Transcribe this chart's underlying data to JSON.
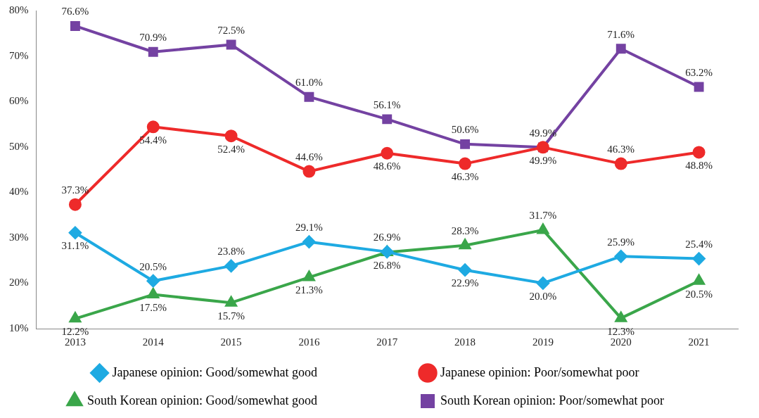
{
  "chart_data": {
    "type": "line",
    "categories": [
      "2013",
      "2014",
      "2015",
      "2016",
      "2017",
      "2018",
      "2019",
      "2020",
      "2021"
    ],
    "series": [
      {
        "name": "Japanese opinion: Good/somewhat good",
        "color": "#1eaae2",
        "marker": "diamond",
        "values": [
          31.1,
          20.5,
          23.8,
          29.1,
          26.9,
          22.9,
          20.0,
          25.9,
          25.4
        ],
        "value_labels": [
          "31.1%",
          "20.5%",
          "23.8%",
          "29.1%",
          "26.9%",
          "22.9%",
          "20.0%",
          "25.9%",
          "25.4%"
        ]
      },
      {
        "name": "Japanese opinion: Poor/somewhat poor",
        "color": "#ee2a2a",
        "marker": "circle",
        "values": [
          37.3,
          54.4,
          52.4,
          44.6,
          48.6,
          46.3,
          49.9,
          46.3,
          48.8
        ],
        "value_labels": [
          "37.3%",
          "54.4%",
          "52.4%",
          "44.6%",
          "48.6%",
          "46.3%",
          "49.9%",
          "46.3%",
          "48.8%"
        ]
      },
      {
        "name": "South Korean opinion: Good/somewhat good",
        "color": "#3aa64a",
        "marker": "triangle",
        "values": [
          12.2,
          17.5,
          15.7,
          21.3,
          26.8,
          28.3,
          31.7,
          12.3,
          20.5
        ],
        "value_labels": [
          "12.2%",
          "17.5%",
          "15.7%",
          "21.3%",
          "26.8%",
          "28.3%",
          "31.7%",
          "12.3%",
          "20.5%"
        ]
      },
      {
        "name": "South Korean opinion: Poor/somewhat poor",
        "color": "#7442a2",
        "marker": "square",
        "values": [
          76.6,
          70.9,
          72.5,
          61.0,
          56.1,
          50.6,
          49.9,
          71.6,
          63.2
        ],
        "value_labels": [
          "76.6%",
          "70.9%",
          "72.5%",
          "61.0%",
          "56.1%",
          "50.6%",
          "49.9%",
          "71.6%",
          "63.2%"
        ]
      }
    ],
    "ylim": [
      10,
      80
    ],
    "yticks": [
      {
        "value": 10,
        "label": "10%"
      },
      {
        "value": 20,
        "label": "20%"
      },
      {
        "value": 30,
        "label": "30%"
      },
      {
        "value": 40,
        "label": "40%"
      },
      {
        "value": 50,
        "label": "50%"
      },
      {
        "value": 60,
        "label": "60%"
      },
      {
        "value": 70,
        "label": "70%"
      },
      {
        "value": 80,
        "label": "80%"
      }
    ],
    "grid": false,
    "legend": "bottom"
  }
}
